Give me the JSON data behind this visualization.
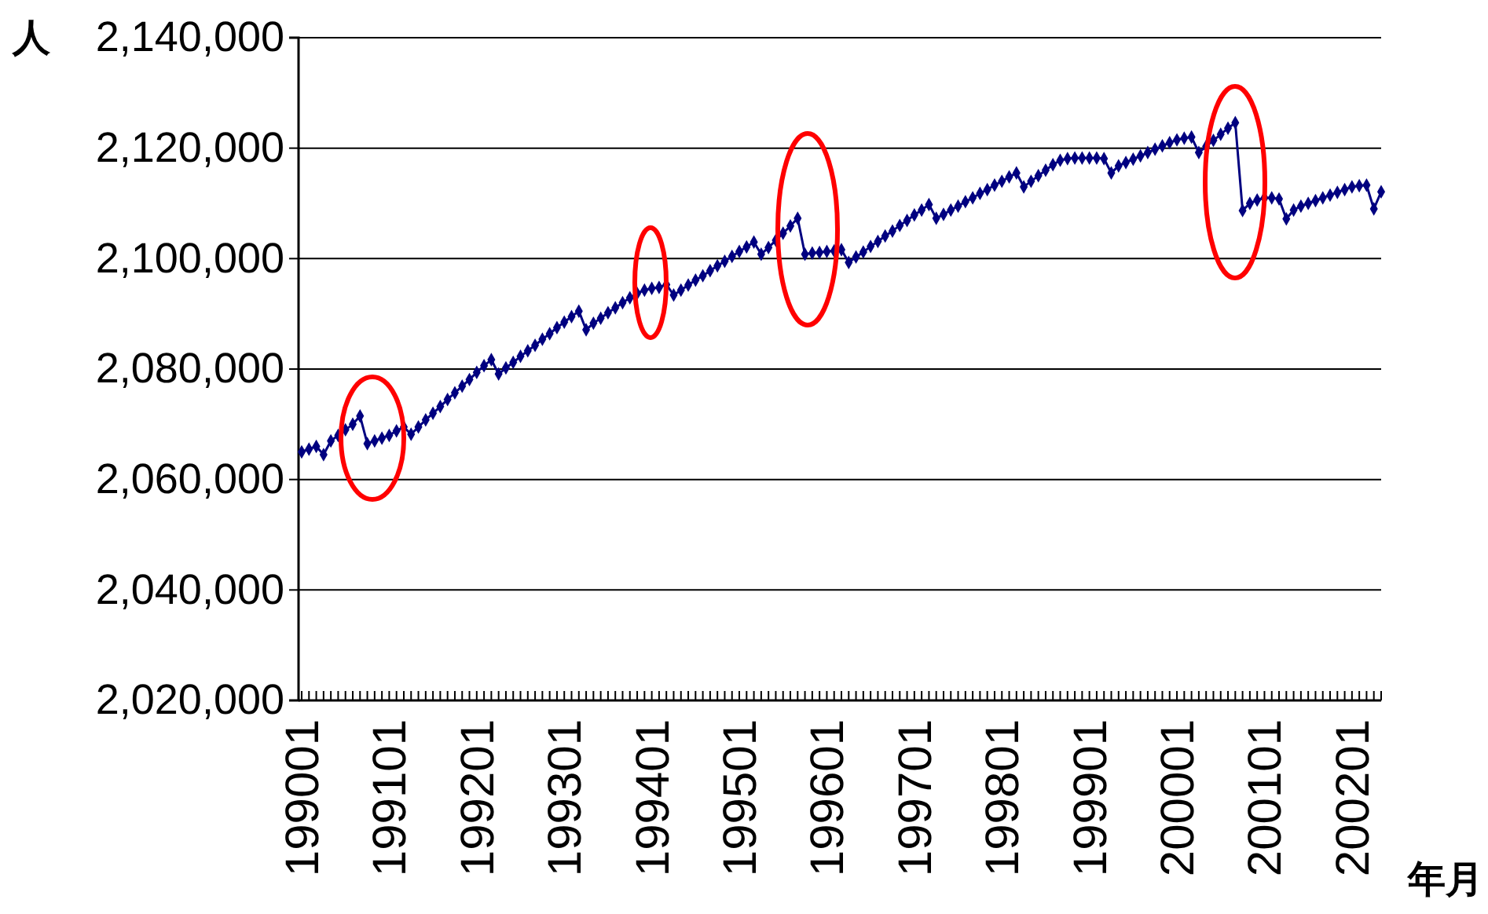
{
  "chart_data": {
    "type": "line",
    "xlabel": "年月",
    "ylabel": "人",
    "categories": [
      "199001",
      null,
      null,
      null,
      null,
      null,
      null,
      null,
      null,
      null,
      null,
      null,
      "199101",
      null,
      null,
      null,
      null,
      null,
      null,
      null,
      null,
      null,
      null,
      null,
      "199201",
      null,
      null,
      null,
      null,
      null,
      null,
      null,
      null,
      null,
      null,
      null,
      "199301",
      null,
      null,
      null,
      null,
      null,
      null,
      null,
      null,
      null,
      null,
      null,
      "199401",
      null,
      null,
      null,
      null,
      null,
      null,
      null,
      null,
      null,
      null,
      null,
      "199501",
      null,
      null,
      null,
      null,
      null,
      null,
      null,
      null,
      null,
      null,
      null,
      "199601",
      null,
      null,
      null,
      null,
      null,
      null,
      null,
      null,
      null,
      null,
      null,
      "199701",
      null,
      null,
      null,
      null,
      null,
      null,
      null,
      null,
      null,
      null,
      null,
      "199801",
      null,
      null,
      null,
      null,
      null,
      null,
      null,
      null,
      null,
      null,
      null,
      "199901",
      null,
      null,
      null,
      null,
      null,
      null,
      null,
      null,
      null,
      null,
      null,
      "200001",
      null,
      null,
      null,
      null,
      null,
      null,
      null,
      null,
      null,
      null,
      null,
      "200101",
      null,
      null,
      null,
      null,
      null,
      null,
      null,
      null,
      null,
      null,
      null,
      "200201",
      null,
      null,
      null,
      null
    ],
    "series": [
      {
        "color": "#000080",
        "values": [
          2065000,
          2065500,
          2066000,
          2064500,
          2067000,
          2068000,
          2069000,
          2070000,
          2071500,
          2066500,
          2067000,
          2067500,
          2068000,
          2068800,
          2069500,
          2068200,
          2069500,
          2070800,
          2072000,
          2073200,
          2074500,
          2075700,
          2076900,
          2078100,
          2079400,
          2080600,
          2081700,
          2079100,
          2080200,
          2081200,
          2082300,
          2083300,
          2084300,
          2085400,
          2086400,
          2087500,
          2088500,
          2089500,
          2090500,
          2087100,
          2088300,
          2089200,
          2090200,
          2091100,
          2092000,
          2092900,
          2093700,
          2094300,
          2094600,
          2094800,
          2095300,
          2093400,
          2094300,
          2095200,
          2096100,
          2096900,
          2097800,
          2098700,
          2099500,
          2100400,
          2101300,
          2102100,
          2103000,
          2100800,
          2102000,
          2103300,
          2104600,
          2105900,
          2107300,
          2100800,
          2101000,
          2101100,
          2101300,
          2101400,
          2101600,
          2099300,
          2100300,
          2101200,
          2102200,
          2103100,
          2104100,
          2105000,
          2106000,
          2106900,
          2107900,
          2108800,
          2109800,
          2107300,
          2108000,
          2108800,
          2109500,
          2110300,
          2111000,
          2111800,
          2112500,
          2113300,
          2114000,
          2114800,
          2115500,
          2113000,
          2114000,
          2115000,
          2116000,
          2117000,
          2117800,
          2118100,
          2118200,
          2118200,
          2118200,
          2118200,
          2118100,
          2115500,
          2116800,
          2117400,
          2118000,
          2118600,
          2119200,
          2119800,
          2120400,
          2121000,
          2121500,
          2121800,
          2122000,
          2119200,
          2120300,
          2121400,
          2122500,
          2123600,
          2124600,
          2108700,
          2110000,
          2110600,
          2111000,
          2111000,
          2110800,
          2107200,
          2108800,
          2109500,
          2110000,
          2110500,
          2111000,
          2111500,
          2112000,
          2112500,
          2113000,
          2113200,
          2113300,
          2109000,
          2112100
        ]
      }
    ],
    "ylim": [
      2020000,
      2140000
    ],
    "yticks": [
      {
        "value": 2020000,
        "label": "2,020,000"
      },
      {
        "value": 2040000,
        "label": "2,040,000"
      },
      {
        "value": 2060000,
        "label": "2,060,000"
      },
      {
        "value": 2080000,
        "label": "2,080,000"
      },
      {
        "value": 2100000,
        "label": "2,100,000"
      },
      {
        "value": 2120000,
        "label": "2,120,000"
      },
      {
        "value": 2140000,
        "label": "2,140,000"
      }
    ],
    "grid": "y",
    "marker": "diamond",
    "line_style": "solid"
  }
}
